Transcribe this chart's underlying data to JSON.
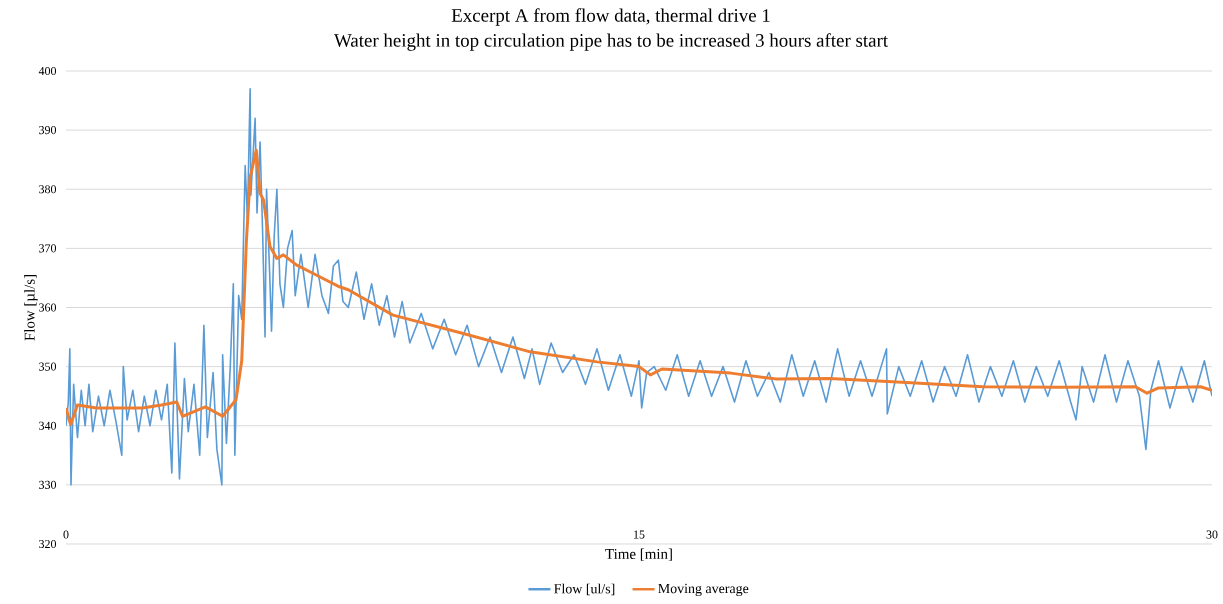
{
  "chart_data": {
    "type": "line",
    "title": "Excerpt A from flow data, thermal drive 1",
    "subtitle": "Water height in top circulation pipe has to be increased 3 hours after start",
    "xlabel": "Time [min]",
    "ylabel": "Flow [µl/s]",
    "xlim": [
      0,
      30
    ],
    "xticks": [
      0,
      15,
      30
    ],
    "ylim": [
      320,
      400
    ],
    "yticks": [
      320,
      330,
      340,
      350,
      360,
      370,
      380,
      390,
      400
    ],
    "grid": "y",
    "legend": "bottom",
    "series": [
      {
        "name": "Flow [ul/s]",
        "color": "#5b9bd5",
        "x": [
          0.0,
          0.06,
          0.1,
          0.13,
          0.2,
          0.3,
          0.4,
          0.5,
          0.6,
          0.7,
          0.85,
          1.0,
          1.15,
          1.3,
          1.46,
          1.5,
          1.6,
          1.75,
          1.9,
          2.05,
          2.2,
          2.35,
          2.5,
          2.65,
          2.77,
          2.85,
          2.97,
          3.1,
          3.2,
          3.35,
          3.5,
          3.61,
          3.7,
          3.85,
          3.95,
          4.08,
          4.1,
          4.2,
          4.3,
          4.38,
          4.42,
          4.52,
          4.6,
          4.69,
          4.75,
          4.82,
          4.84,
          4.95,
          5.0,
          5.08,
          5.15,
          5.21,
          5.25,
          5.33,
          5.38,
          5.45,
          5.52,
          5.6,
          5.69,
          5.8,
          5.92,
          6.0,
          6.15,
          6.34,
          6.52,
          6.7,
          6.87,
          7.0,
          7.13,
          7.25,
          7.39,
          7.6,
          7.8,
          8.0,
          8.2,
          8.4,
          8.6,
          8.8,
          9.0,
          9.3,
          9.6,
          9.9,
          10.2,
          10.5,
          10.8,
          11.1,
          11.4,
          11.7,
          12.0,
          12.2,
          12.4,
          12.7,
          13.0,
          13.3,
          13.6,
          13.9,
          14.2,
          14.5,
          14.8,
          15.0,
          15.07,
          15.2,
          15.4,
          15.7,
          16.0,
          16.3,
          16.6,
          16.9,
          17.2,
          17.5,
          17.8,
          18.1,
          18.4,
          18.7,
          19.0,
          19.3,
          19.6,
          19.9,
          20.2,
          20.5,
          20.8,
          21.1,
          21.48,
          21.5,
          21.8,
          22.1,
          22.4,
          22.7,
          23.0,
          23.3,
          23.6,
          23.9,
          24.2,
          24.5,
          24.8,
          25.1,
          25.4,
          25.7,
          26.0,
          26.3,
          26.44,
          26.6,
          26.9,
          27.2,
          27.5,
          27.8,
          28.1,
          28.27,
          28.4,
          28.6,
          28.9,
          29.2,
          29.5,
          29.8,
          30.0
        ],
        "values": [
          340,
          344,
          353,
          330,
          347,
          338,
          346,
          340,
          347,
          339,
          345,
          340,
          346,
          341,
          335,
          350,
          341,
          346,
          339,
          345,
          340,
          346,
          341,
          347,
          332,
          354,
          331,
          348,
          339,
          347,
          335,
          357,
          338,
          349,
          336,
          330,
          352,
          337,
          350,
          364,
          335,
          362,
          358,
          384,
          375,
          397,
          379,
          392,
          376,
          388,
          372,
          355,
          380,
          366,
          356,
          372,
          380,
          364,
          360,
          370,
          373,
          362,
          369,
          360,
          369,
          362,
          359,
          367,
          368,
          361,
          360,
          366,
          358,
          364,
          357,
          362,
          355,
          361,
          354,
          359,
          353,
          358,
          352,
          357,
          350,
          355,
          349,
          355,
          348,
          353,
          347,
          354,
          349,
          352,
          347,
          353,
          346,
          352,
          345,
          351,
          343,
          349,
          350,
          346,
          352,
          345,
          351,
          345,
          350,
          344,
          351,
          345,
          349,
          344,
          352,
          345,
          351,
          344,
          353,
          345,
          351,
          345,
          353,
          342,
          350,
          345,
          351,
          344,
          350,
          345,
          352,
          344,
          350,
          345,
          351,
          344,
          350,
          345,
          351,
          344,
          341,
          350,
          344,
          352,
          344,
          351,
          345,
          336,
          346,
          351,
          343,
          350,
          344,
          351,
          345
        ]
      },
      {
        "name": "Moving average",
        "color": "#ed7d31",
        "x": [
          0,
          0.12,
          0.3,
          0.8,
          1.5,
          2.0,
          2.5,
          2.9,
          3.05,
          3.65,
          4.1,
          4.45,
          4.6,
          4.72,
          4.82,
          4.98,
          5.08,
          5.17,
          5.34,
          5.52,
          5.69,
          6.03,
          6.55,
          7.16,
          7.39,
          8.56,
          10.4,
          12.15,
          13.9,
          15.0,
          15.3,
          15.6,
          17.4,
          18.6,
          20.0,
          22.0,
          24.0,
          26.0,
          28.0,
          28.3,
          28.6,
          29.7,
          30
        ],
        "values": [
          343,
          340.2,
          343.5,
          343,
          343,
          343,
          343.5,
          344,
          341.6,
          343.2,
          341.6,
          344.4,
          351,
          371,
          382,
          386.6,
          379.3,
          378.2,
          370.3,
          368.3,
          368.9,
          367.2,
          365.5,
          363.5,
          363,
          358.7,
          355.6,
          352.5,
          350.8,
          350,
          348.6,
          349.6,
          348.9,
          347.9,
          348,
          347.3,
          346.6,
          346.5,
          346.6,
          345.5,
          346.4,
          346.6,
          346
        ]
      }
    ]
  }
}
